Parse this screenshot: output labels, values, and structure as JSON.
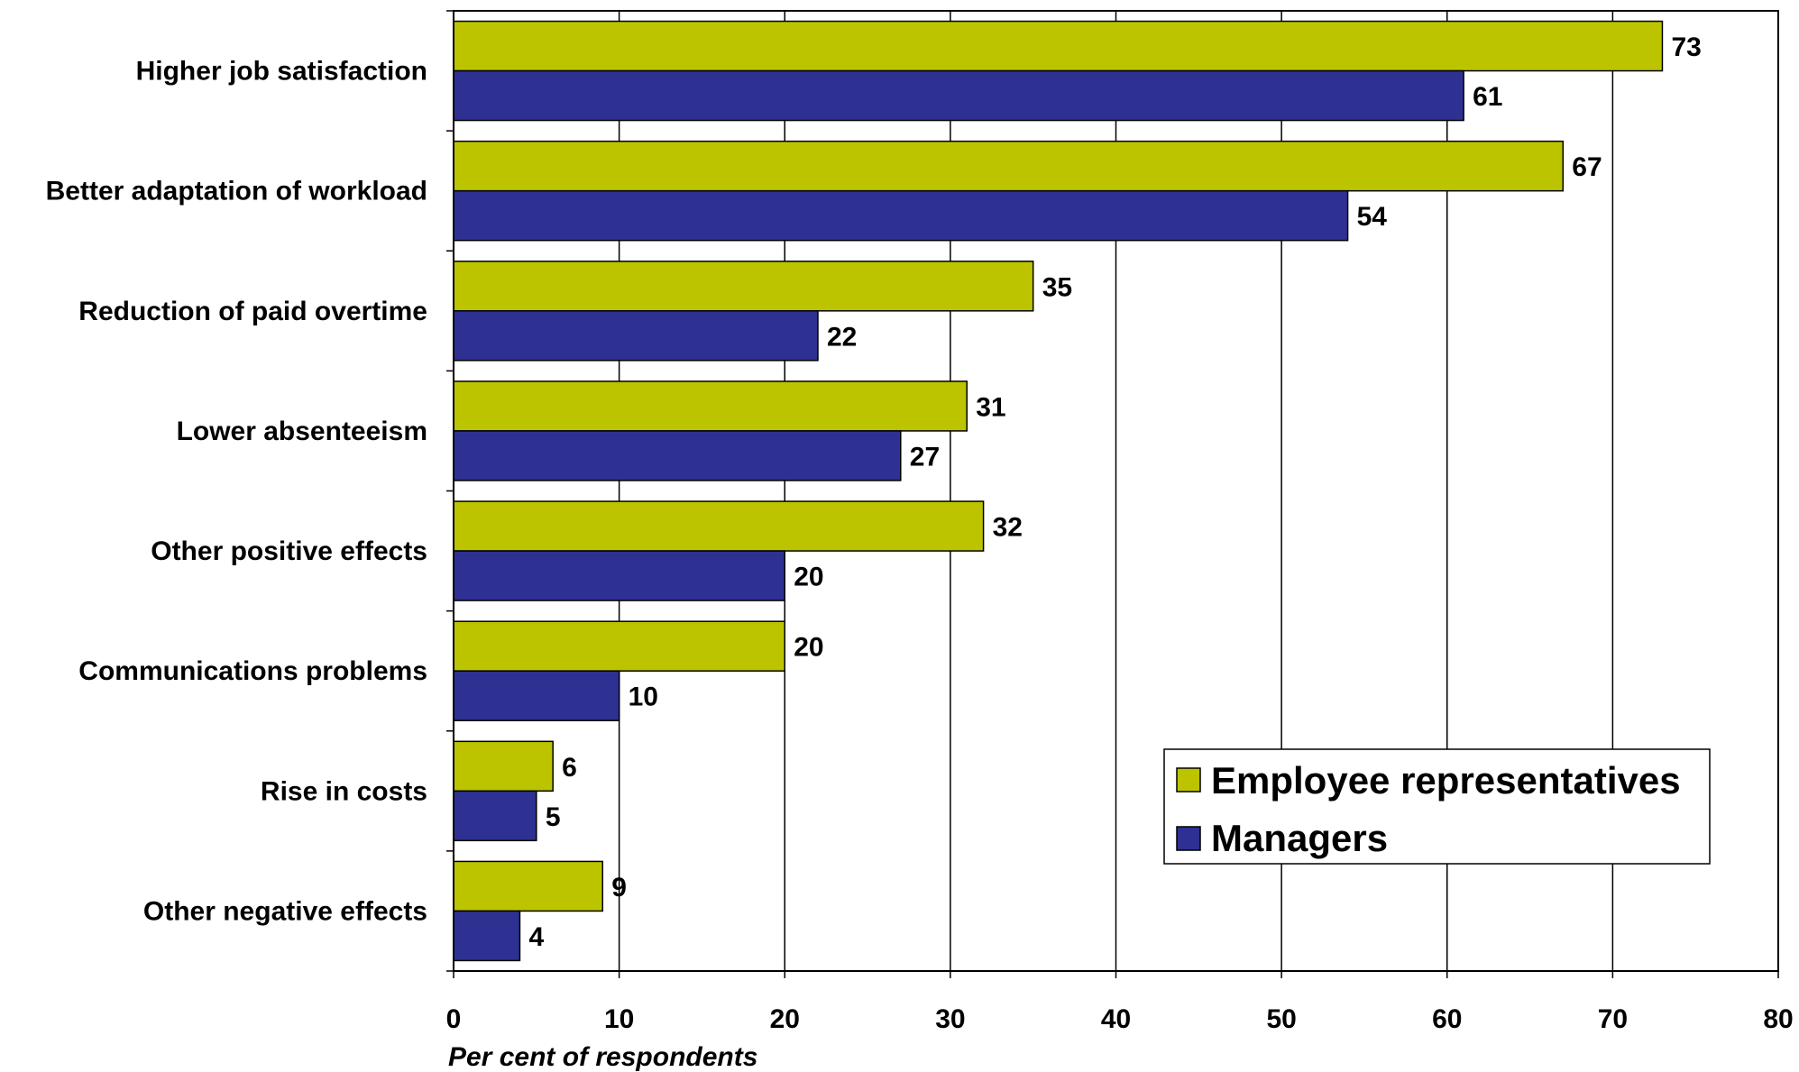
{
  "chart_data": {
    "type": "bar",
    "orientation": "horizontal",
    "categories": [
      "Higher job satisfaction",
      "Better adaptation of workload",
      "Reduction of paid overtime",
      "Lower absenteeism",
      "Other positive effects",
      "Communications problems",
      "Rise in costs",
      "Other negative effects"
    ],
    "series": [
      {
        "name": "Employee representatives",
        "color": "#bcc400",
        "values": [
          73,
          67,
          35,
          31,
          32,
          20,
          6,
          9
        ]
      },
      {
        "name": "Managers",
        "color": "#2e3192",
        "values": [
          61,
          54,
          22,
          27,
          20,
          10,
          5,
          4
        ]
      }
    ],
    "xlabel": "Per cent of respondents",
    "xlim": [
      0,
      80
    ],
    "xticks": [
      "0",
      "10",
      "20",
      "30",
      "40",
      "50",
      "60",
      "70",
      "80"
    ],
    "grid": true,
    "legend_position": "bottom-right"
  }
}
